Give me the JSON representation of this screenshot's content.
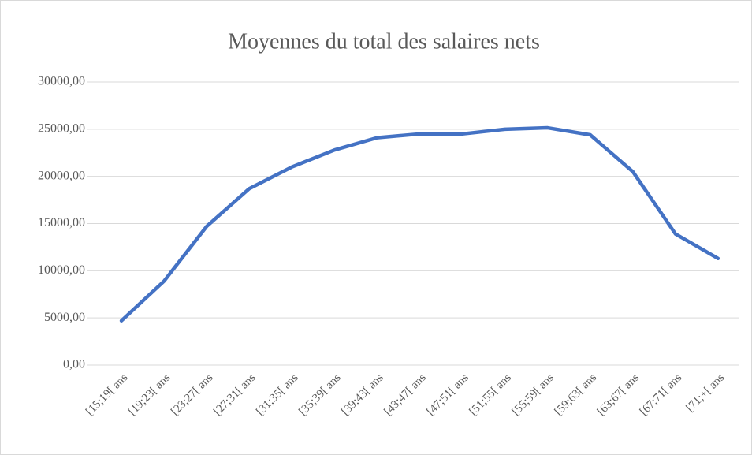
{
  "chart_data": {
    "type": "line",
    "title": "Moyennes du total des salaires nets",
    "categories": [
      "[15;19[ ans",
      "[19;23[ ans",
      "[23;27[ ans",
      "[27;31[ ans",
      "[31;35[ ans",
      "[35;39[ ans",
      "[39;43[ ans",
      "[43;47[ ans",
      "[47;51[ ans",
      "[51;55[ ans",
      "[55;59[ ans",
      "[59;63[ ans",
      "[63;67[ ans",
      "[67;71[ ans",
      "[71;+[ ans"
    ],
    "series": [
      {
        "name": "Moyennes du total des salaires nets",
        "color": "#4472c4",
        "values": [
          4700,
          8900,
          14700,
          18700,
          21000,
          22800,
          24100,
          24500,
          24500,
          25000,
          25150,
          24400,
          20500,
          13900,
          11300
        ]
      }
    ],
    "ylim": [
      0,
      30000
    ],
    "yticks": [
      {
        "value": 0,
        "label": "0,00"
      },
      {
        "value": 5000,
        "label": "5000,00"
      },
      {
        "value": 10000,
        "label": "10000,00"
      },
      {
        "value": 15000,
        "label": "15000,00"
      },
      {
        "value": 20000,
        "label": "20000,00"
      },
      {
        "value": 25000,
        "label": "25000,00"
      },
      {
        "value": 30000,
        "label": "30000,00"
      }
    ],
    "grid": true
  }
}
